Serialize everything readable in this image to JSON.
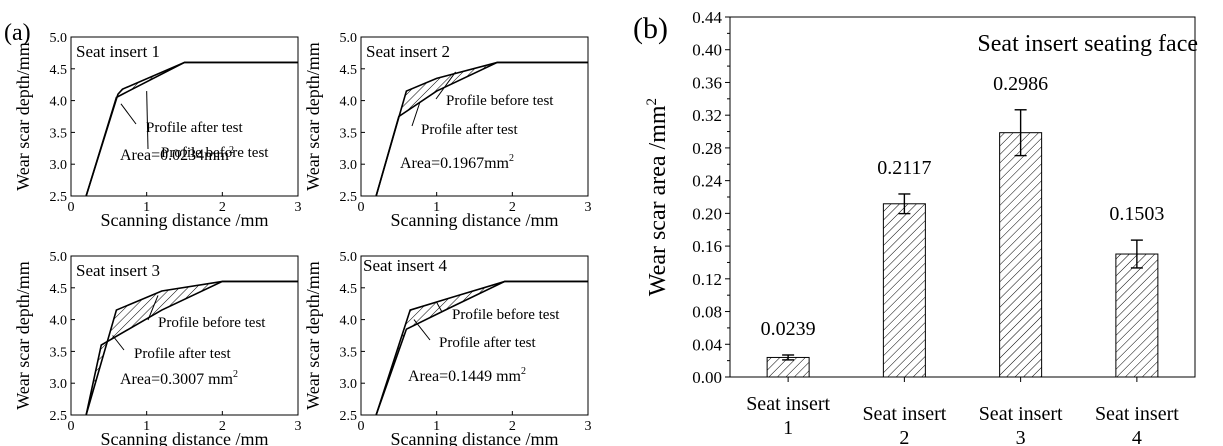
{
  "figure": {
    "panel_a_label": "(a)",
    "panel_b_label": "(b)",
    "profile_before_label": "Profile before test",
    "profile_after_label": "Profile after test"
  },
  "chart_data": [
    {
      "id": "a1",
      "type": "line",
      "title": "Seat insert 1",
      "xlabel": "Scanning distance /mm",
      "ylabel": "Wear scar depth/mm",
      "xlim": [
        0,
        3
      ],
      "ylim": [
        2.5,
        5.0
      ],
      "xticks": [
        0,
        1,
        2,
        3
      ],
      "yticks": [
        2.5,
        3.0,
        3.5,
        4.0,
        4.5,
        5.0
      ],
      "area_label": "Area=0.0234mm",
      "area_sup": "2",
      "series": [
        {
          "role": "before",
          "x": [
            0.2,
            0.62,
            0.68,
            1.5,
            3.0
          ],
          "y": [
            2.5,
            4.1,
            4.18,
            4.6,
            4.6
          ]
        },
        {
          "role": "after",
          "x": [
            0.2,
            0.6,
            0.68,
            1.5,
            3.0
          ],
          "y": [
            2.5,
            4.05,
            4.1,
            4.6,
            4.6
          ]
        }
      ]
    },
    {
      "id": "a2",
      "type": "line",
      "title": "Seat insert 2",
      "xlabel": "Scanning distance /mm",
      "ylabel": "Wear scar depth/mm",
      "xlim": [
        0,
        3
      ],
      "ylim": [
        2.5,
        5.0
      ],
      "xticks": [
        0,
        1,
        2,
        3
      ],
      "yticks": [
        2.5,
        3.0,
        3.5,
        4.0,
        4.5,
        5.0
      ],
      "area_label": "Area=0.1967mm",
      "area_sup": "2",
      "series": [
        {
          "role": "before",
          "x": [
            0.2,
            0.6,
            1.0,
            1.8,
            3.0
          ],
          "y": [
            2.5,
            4.15,
            4.35,
            4.6,
            4.6
          ]
        },
        {
          "role": "after",
          "x": [
            0.2,
            0.5,
            1.0,
            1.8,
            3.0
          ],
          "y": [
            2.5,
            3.75,
            4.15,
            4.6,
            4.6
          ]
        }
      ]
    },
    {
      "id": "a3",
      "type": "line",
      "title": "Seat insert 3",
      "xlabel": "Scanning distance /mm",
      "ylabel": "Wear scar depth/mm",
      "xlim": [
        0,
        3
      ],
      "ylim": [
        2.5,
        5.0
      ],
      "xticks": [
        0,
        1,
        2,
        3
      ],
      "yticks": [
        2.5,
        3.0,
        3.5,
        4.0,
        4.5,
        5.0
      ],
      "area_label": "Area=0.3007 mm",
      "area_sup": "2",
      "series": [
        {
          "role": "before",
          "x": [
            0.2,
            0.6,
            1.2,
            2.0,
            3.0
          ],
          "y": [
            2.5,
            4.15,
            4.45,
            4.6,
            4.6
          ]
        },
        {
          "role": "after",
          "x": [
            0.2,
            0.4,
            1.2,
            2.0,
            3.0
          ],
          "y": [
            2.5,
            3.6,
            4.15,
            4.6,
            4.6
          ]
        }
      ]
    },
    {
      "id": "a4",
      "type": "line",
      "title": "Seat insert 4",
      "xlabel": "Scanning distance /mm",
      "ylabel": "Wear scar depth/mm",
      "xlim": [
        0,
        3
      ],
      "ylim": [
        2.5,
        5.0
      ],
      "xticks": [
        0,
        1,
        2,
        3
      ],
      "yticks": [
        2.5,
        3.0,
        3.5,
        4.0,
        4.5,
        5.0
      ],
      "area_label": "Area=0.1449 mm",
      "area_sup": "2",
      "series": [
        {
          "role": "before",
          "x": [
            0.2,
            0.65,
            1.2,
            1.9,
            3.0
          ],
          "y": [
            2.5,
            4.15,
            4.35,
            4.6,
            4.6
          ]
        },
        {
          "role": "after",
          "x": [
            0.2,
            0.6,
            1.2,
            1.9,
            3.0
          ],
          "y": [
            2.5,
            3.85,
            4.2,
            4.6,
            4.6
          ]
        }
      ]
    },
    {
      "id": "b",
      "type": "bar",
      "title": "Seat insert seating face",
      "xlabel": "",
      "ylabel": "Wear scar area /mm",
      "ylabel_sup": "2",
      "ylim": [
        0,
        0.44
      ],
      "yticks": [
        0.0,
        0.04,
        0.08,
        0.12,
        0.16,
        0.2,
        0.24,
        0.28,
        0.32,
        0.36,
        0.4,
        0.44
      ],
      "categories": [
        {
          "line1": "Seat insert",
          "line2": "1"
        },
        {
          "line1": "Seat insert",
          "line2": "2"
        },
        {
          "line1": "Seat insert",
          "line2": "3"
        },
        {
          "line1": "Seat insert",
          "line2": "4"
        }
      ],
      "values": [
        0.0239,
        0.2117,
        0.2986,
        0.1503
      ],
      "value_labels": [
        "0.0239",
        "0.2117",
        "0.2986",
        "0.1503"
      ],
      "errors": [
        0.003,
        0.012,
        0.028,
        0.017
      ],
      "pattern": "diagonal-hatch"
    }
  ]
}
